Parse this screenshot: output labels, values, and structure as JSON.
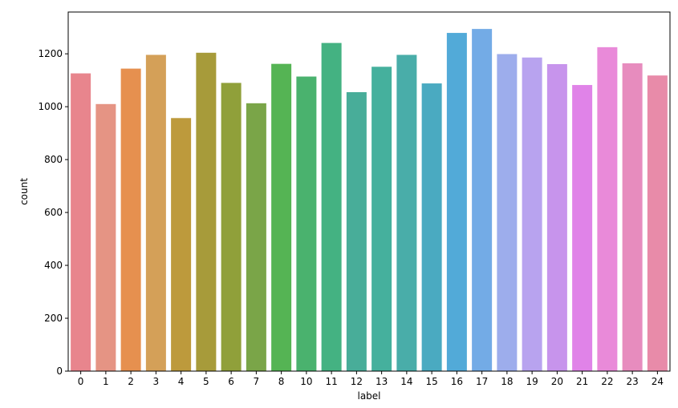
{
  "chart_data": {
    "type": "bar",
    "title": "",
    "xlabel": "label",
    "ylabel": "count",
    "categories": [
      "0",
      "1",
      "2",
      "3",
      "4",
      "5",
      "6",
      "7",
      "8",
      "10",
      "11",
      "12",
      "13",
      "14",
      "15",
      "16",
      "17",
      "18",
      "19",
      "20",
      "21",
      "22",
      "23",
      "24"
    ],
    "values": [
      1126,
      1010,
      1144,
      1196,
      957,
      1204,
      1090,
      1013,
      1162,
      1114,
      1241,
      1055,
      1151,
      1196,
      1088,
      1279,
      1294,
      1199,
      1186,
      1161,
      1082,
      1225,
      1164,
      1118
    ],
    "colors": [
      "#e8858d",
      "#e59484",
      "#e6904f",
      "#d4a058",
      "#bd9a3c",
      "#a79b3a",
      "#90a03a",
      "#7aa548",
      "#55b454",
      "#4ab26e",
      "#44b282",
      "#48ad99",
      "#45b09d",
      "#49ada9",
      "#4aaac1",
      "#52aad8",
      "#73abe6",
      "#9dadec",
      "#b8a3ef",
      "#c794ec",
      "#e083e8",
      "#e98ad9",
      "#e78cbe",
      "#e88ba9"
    ],
    "yticks": [
      0,
      200,
      400,
      600,
      800,
      1000,
      1200
    ],
    "ylim": [
      0,
      1358
    ],
    "grid": false,
    "legend": "none"
  }
}
